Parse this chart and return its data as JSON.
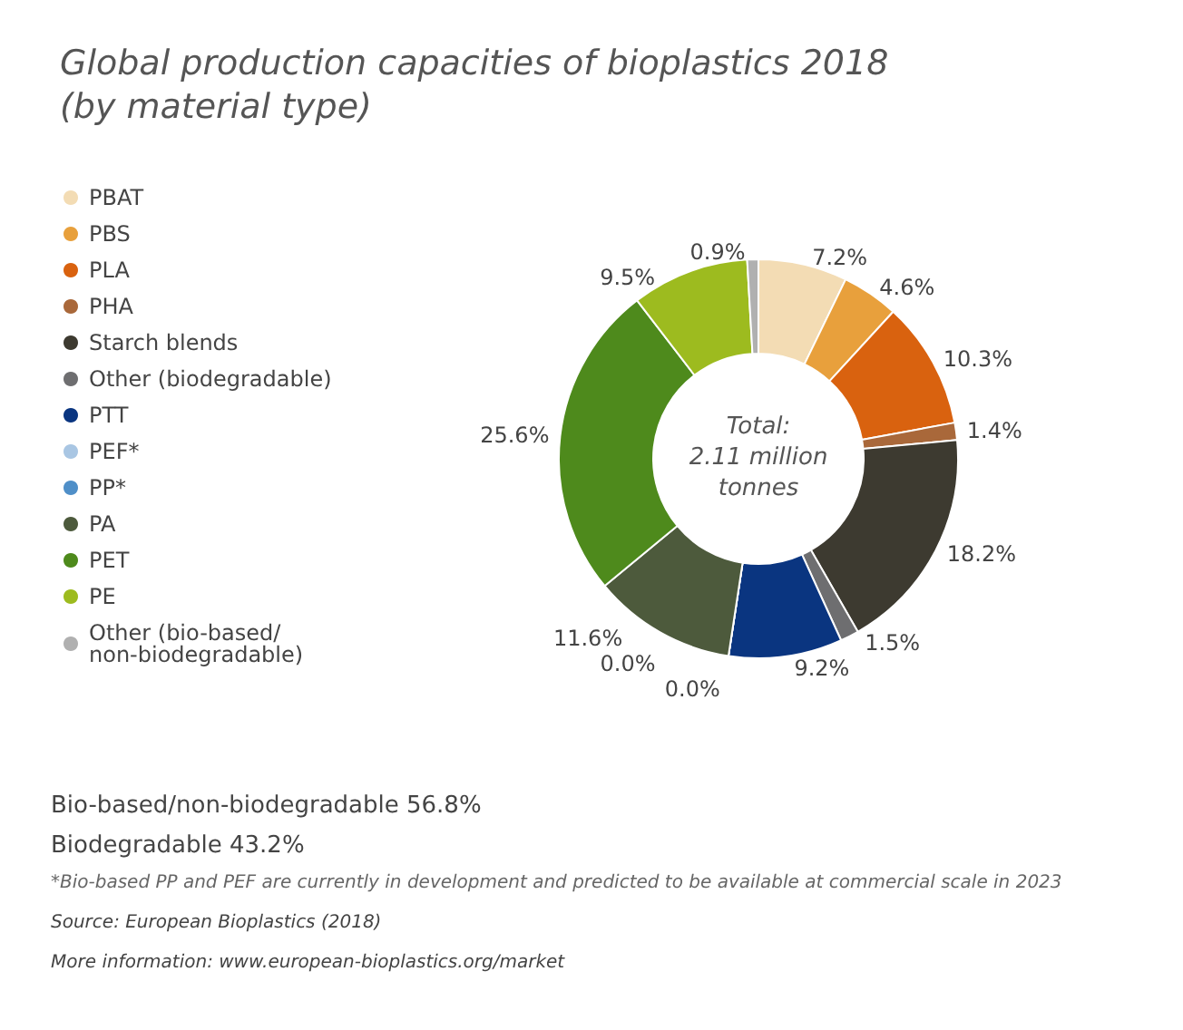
{
  "chart_data": {
    "type": "donut",
    "title": "Global production capacities of bioplastics 2018\n(by material type)",
    "categories": [
      "PBAT",
      "PBS",
      "PLA",
      "PHA",
      "Starch blends",
      "Other (biodegradable)",
      "PTT",
      "PEF*",
      "PP*",
      "PA",
      "PET",
      "PE",
      "Other (bio-based/non-biodegradable)"
    ],
    "values": [
      7.2,
      4.6,
      10.3,
      1.4,
      18.2,
      1.5,
      9.2,
      0.0,
      0.0,
      11.6,
      25.6,
      9.5,
      0.9
    ],
    "colors": [
      "#f3dcb4",
      "#e8a03c",
      "#d9620f",
      "#a9683a",
      "#3d3a30",
      "#6e6e70",
      "#0a3580",
      "#a9c6e3",
      "#4f8fc8",
      "#4d5a3c",
      "#4e8a1c",
      "#9dbb1f",
      "#b0b0b0"
    ],
    "value_labels": [
      "7.2%",
      "4.6%",
      "10.3%",
      "1.4%",
      "18.2%",
      "1.5%",
      "9.2%",
      "0.0%",
      "0.0%",
      "11.6%",
      "25.6%",
      "9.5%",
      "0.9%"
    ],
    "legend": "left",
    "annotations": [
      "Total:\n2.11 million\ntonnes",
      "Bio-based/non-biodegradable 56.8%",
      "Biodegradable 43.2%",
      "*Bio-based PP and PEF are currently in development and predicted to be available at commercial scale in 2023",
      "Source: European Bioplastics (2018)",
      "More information: www.european-bioplastics.org/market"
    ]
  }
}
